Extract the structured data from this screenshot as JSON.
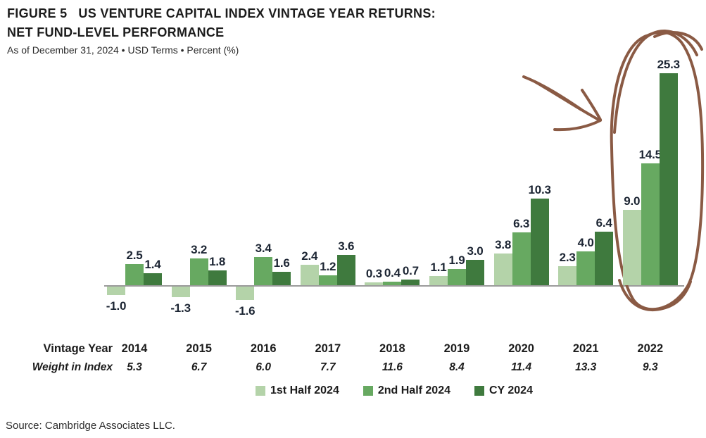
{
  "header": {
    "figure_label": "FIGURE 5",
    "title_line1": "US VENTURE CAPITAL INDEX VINTAGE YEAR RETURNS:",
    "title_line2": "NET FUND-LEVEL PERFORMANCE",
    "subtitle": "As of December 31, 2024 • USD Terms • Percent (%)"
  },
  "chart_data": {
    "type": "bar",
    "title": "US Venture Capital Index Vintage Year Returns: Net Fund-Level Performance",
    "categories": [
      "2014",
      "2015",
      "2016",
      "2017",
      "2018",
      "2019",
      "2020",
      "2021",
      "2022"
    ],
    "series": [
      {
        "name": "1st Half 2024",
        "color": "#b4d3a9",
        "values": [
          -1.0,
          -1.3,
          -1.6,
          2.4,
          0.3,
          1.1,
          3.8,
          2.3,
          9.0
        ]
      },
      {
        "name": "2nd Half 2024",
        "color": "#67a961",
        "values": [
          2.5,
          3.2,
          3.4,
          1.2,
          0.4,
          1.9,
          6.3,
          4.0,
          14.5
        ]
      },
      {
        "name": "CY 2024",
        "color": "#3f7a3e",
        "values": [
          1.4,
          1.8,
          1.6,
          3.6,
          0.7,
          3.0,
          10.3,
          6.4,
          25.3
        ]
      }
    ],
    "row_labels": {
      "vintage_year": "Vintage Year",
      "weight_in_index": "Weight in Index"
    },
    "weights": [
      "5.3",
      "6.7",
      "6.0",
      "7.7",
      "11.6",
      "8.4",
      "11.4",
      "13.3",
      "9.3"
    ],
    "ylabel": "Percent (%)",
    "ylim": [
      -3,
      27
    ],
    "grid": false,
    "legend_position": "bottom",
    "annotation": {
      "description": "hand-drawn brown circle around 2022 bars with arrow pointing at them",
      "color": "#8a5a44"
    }
  },
  "source": "Source: Cambridge Associates LLC."
}
